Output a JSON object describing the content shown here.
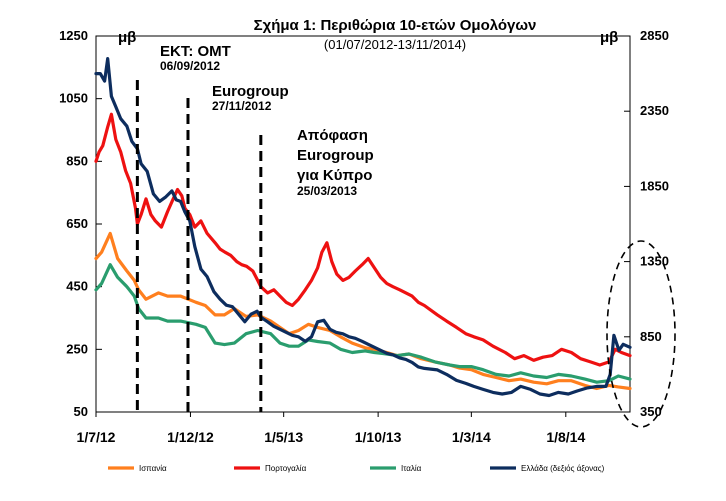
{
  "chart_data": {
    "type": "line",
    "title": "Σχήμα 1: Περιθώρια 10-ετών Ομολόγων",
    "subtitle": "(01/07/2012-13/11/2014)",
    "ylabel_left": "μβ",
    "ylabel_right": "μβ",
    "x_ticks": [
      "1/7/12",
      "1/12/12",
      "1/5/13",
      "1/10/13",
      "1/3/14",
      "1/8/14"
    ],
    "x_tick_dates": [
      "2012-07-01",
      "2012-12-01",
      "2013-05-01",
      "2013-10-01",
      "2014-03-01",
      "2014-08-01"
    ],
    "x_range": [
      "2012-07-01",
      "2014-11-13"
    ],
    "ylim_left": [
      50,
      1250
    ],
    "ylim_right": [
      350,
      2850
    ],
    "y_ticks_left": [
      50,
      250,
      450,
      650,
      850,
      1050,
      1250
    ],
    "y_ticks_right": [
      350,
      850,
      1350,
      1850,
      2350,
      2850
    ],
    "grid": false,
    "legend_position": "bottom",
    "annotations": [
      {
        "id": "omt",
        "date": "2012-09-06",
        "label": "ΕΚΤ: ΟΜΤ",
        "sublabel": "06/09/2012"
      },
      {
        "id": "eurogroup",
        "date": "2012-11-27",
        "label": "Eurogroup",
        "sublabel": "27/11/2012"
      },
      {
        "id": "cyprus",
        "date": "2013-03-25",
        "label_lines": [
          "Απόφαση",
          "Eurogroup",
          "για Κύπρο"
        ],
        "sublabel": "25/03/2013"
      }
    ],
    "series": [
      {
        "name": "Ισπανία",
        "axis": "left",
        "color": "#ff7f1e",
        "points": [
          [
            "2012-07-01",
            540
          ],
          [
            "2012-07-10",
            560
          ],
          [
            "2012-07-24",
            620
          ],
          [
            "2012-08-05",
            540
          ],
          [
            "2012-08-20",
            500
          ],
          [
            "2012-09-01",
            470
          ],
          [
            "2012-09-08",
            440
          ],
          [
            "2012-09-20",
            410
          ],
          [
            "2012-10-10",
            430
          ],
          [
            "2012-10-25",
            420
          ],
          [
            "2012-11-15",
            420
          ],
          [
            "2012-12-10",
            400
          ],
          [
            "2012-12-25",
            390
          ],
          [
            "2013-01-10",
            360
          ],
          [
            "2013-01-25",
            360
          ],
          [
            "2013-02-10",
            380
          ],
          [
            "2013-03-01",
            355
          ],
          [
            "2013-03-20",
            360
          ],
          [
            "2013-04-10",
            340
          ],
          [
            "2013-04-25",
            320
          ],
          [
            "2013-05-10",
            300
          ],
          [
            "2013-05-25",
            310
          ],
          [
            "2013-06-10",
            330
          ],
          [
            "2013-06-25",
            320
          ],
          [
            "2013-07-15",
            310
          ],
          [
            "2013-08-01",
            290
          ],
          [
            "2013-08-20",
            270
          ],
          [
            "2013-09-10",
            255
          ],
          [
            "2013-09-25",
            250
          ],
          [
            "2013-10-15",
            240
          ],
          [
            "2013-11-01",
            230
          ],
          [
            "2013-11-20",
            235
          ],
          [
            "2013-12-10",
            220
          ],
          [
            "2014-01-01",
            210
          ],
          [
            "2014-01-25",
            200
          ],
          [
            "2014-02-10",
            190
          ],
          [
            "2014-03-01",
            185
          ],
          [
            "2014-03-20",
            170
          ],
          [
            "2014-04-10",
            160
          ],
          [
            "2014-05-01",
            150
          ],
          [
            "2014-05-20",
            155
          ],
          [
            "2014-06-10",
            145
          ],
          [
            "2014-07-01",
            140
          ],
          [
            "2014-07-20",
            150
          ],
          [
            "2014-08-10",
            150
          ],
          [
            "2014-09-01",
            135
          ],
          [
            "2014-09-20",
            125
          ],
          [
            "2014-10-10",
            135
          ],
          [
            "2014-10-25",
            130
          ],
          [
            "2014-11-13",
            125
          ]
        ]
      },
      {
        "name": "Πορτογαλία",
        "axis": "left",
        "color": "#ee1111",
        "points": [
          [
            "2012-07-01",
            850
          ],
          [
            "2012-07-06",
            880
          ],
          [
            "2012-07-12",
            900
          ],
          [
            "2012-07-20",
            960
          ],
          [
            "2012-07-26",
            1000
          ],
          [
            "2012-08-02",
            920
          ],
          [
            "2012-08-10",
            880
          ],
          [
            "2012-08-18",
            820
          ],
          [
            "2012-08-26",
            780
          ],
          [
            "2012-09-03",
            700
          ],
          [
            "2012-09-06",
            650
          ],
          [
            "2012-09-12",
            680
          ],
          [
            "2012-09-20",
            730
          ],
          [
            "2012-09-28",
            680
          ],
          [
            "2012-10-05",
            660
          ],
          [
            "2012-10-15",
            640
          ],
          [
            "2012-10-25",
            690
          ],
          [
            "2012-11-03",
            730
          ],
          [
            "2012-11-10",
            760
          ],
          [
            "2012-11-17",
            740
          ],
          [
            "2012-11-22",
            700
          ],
          [
            "2012-11-30",
            680
          ],
          [
            "2012-12-08",
            640
          ],
          [
            "2012-12-18",
            660
          ],
          [
            "2012-12-28",
            620
          ],
          [
            "2013-01-10",
            590
          ],
          [
            "2013-01-18",
            570
          ],
          [
            "2013-01-26",
            560
          ],
          [
            "2013-02-04",
            550
          ],
          [
            "2013-02-14",
            530
          ],
          [
            "2013-02-22",
            520
          ],
          [
            "2013-03-02",
            515
          ],
          [
            "2013-03-12",
            500
          ],
          [
            "2013-03-20",
            470
          ],
          [
            "2013-03-25",
            450
          ],
          [
            "2013-04-05",
            430
          ],
          [
            "2013-04-15",
            440
          ],
          [
            "2013-04-25",
            420
          ],
          [
            "2013-05-05",
            400
          ],
          [
            "2013-05-15",
            390
          ],
          [
            "2013-05-25",
            410
          ],
          [
            "2013-06-05",
            440
          ],
          [
            "2013-06-15",
            470
          ],
          [
            "2013-06-25",
            510
          ],
          [
            "2013-07-02",
            560
          ],
          [
            "2013-07-10",
            590
          ],
          [
            "2013-07-18",
            530
          ],
          [
            "2013-07-26",
            490
          ],
          [
            "2013-08-05",
            470
          ],
          [
            "2013-08-15",
            480
          ],
          [
            "2013-08-25",
            500
          ],
          [
            "2013-09-05",
            520
          ],
          [
            "2013-09-15",
            540
          ],
          [
            "2013-09-25",
            510
          ],
          [
            "2013-10-05",
            480
          ],
          [
            "2013-10-15",
            460
          ],
          [
            "2013-10-25",
            450
          ],
          [
            "2013-11-05",
            440
          ],
          [
            "2013-11-15",
            430
          ],
          [
            "2013-11-25",
            420
          ],
          [
            "2013-12-05",
            400
          ],
          [
            "2013-12-15",
            390
          ],
          [
            "2014-01-05",
            360
          ],
          [
            "2014-01-20",
            340
          ],
          [
            "2014-02-05",
            320
          ],
          [
            "2014-02-20",
            300
          ],
          [
            "2014-03-05",
            290
          ],
          [
            "2014-03-20",
            280
          ],
          [
            "2014-04-05",
            260
          ],
          [
            "2014-04-25",
            240
          ],
          [
            "2014-05-10",
            220
          ],
          [
            "2014-05-25",
            230
          ],
          [
            "2014-06-10",
            215
          ],
          [
            "2014-06-25",
            225
          ],
          [
            "2014-07-10",
            230
          ],
          [
            "2014-07-25",
            250
          ],
          [
            "2014-08-10",
            240
          ],
          [
            "2014-08-25",
            220
          ],
          [
            "2014-09-10",
            210
          ],
          [
            "2014-09-25",
            200
          ],
          [
            "2014-10-10",
            210
          ],
          [
            "2014-10-20",
            250
          ],
          [
            "2014-10-30",
            240
          ],
          [
            "2014-11-13",
            230
          ]
        ]
      },
      {
        "name": "Ιταλία",
        "axis": "left",
        "color": "#2a9d6e",
        "points": [
          [
            "2012-07-01",
            440
          ],
          [
            "2012-07-10",
            460
          ],
          [
            "2012-07-24",
            520
          ],
          [
            "2012-08-05",
            480
          ],
          [
            "2012-08-20",
            450
          ],
          [
            "2012-09-01",
            420
          ],
          [
            "2012-09-08",
            380
          ],
          [
            "2012-09-20",
            350
          ],
          [
            "2012-10-10",
            350
          ],
          [
            "2012-10-25",
            340
          ],
          [
            "2012-11-15",
            340
          ],
          [
            "2012-12-10",
            330
          ],
          [
            "2012-12-25",
            320
          ],
          [
            "2013-01-10",
            270
          ],
          [
            "2013-01-25",
            265
          ],
          [
            "2013-02-10",
            270
          ],
          [
            "2013-03-01",
            300
          ],
          [
            "2013-03-20",
            310
          ],
          [
            "2013-04-10",
            300
          ],
          [
            "2013-04-25",
            270
          ],
          [
            "2013-05-10",
            260
          ],
          [
            "2013-05-25",
            260
          ],
          [
            "2013-06-10",
            280
          ],
          [
            "2013-06-25",
            275
          ],
          [
            "2013-07-15",
            270
          ],
          [
            "2013-08-01",
            250
          ],
          [
            "2013-08-20",
            240
          ],
          [
            "2013-09-10",
            245
          ],
          [
            "2013-09-25",
            240
          ],
          [
            "2013-10-15",
            235
          ],
          [
            "2013-11-01",
            230
          ],
          [
            "2013-11-20",
            235
          ],
          [
            "2013-12-10",
            225
          ],
          [
            "2014-01-01",
            210
          ],
          [
            "2014-01-25",
            200
          ],
          [
            "2014-02-10",
            195
          ],
          [
            "2014-03-01",
            195
          ],
          [
            "2014-03-20",
            185
          ],
          [
            "2014-04-10",
            170
          ],
          [
            "2014-05-01",
            165
          ],
          [
            "2014-05-20",
            175
          ],
          [
            "2014-06-10",
            165
          ],
          [
            "2014-07-01",
            160
          ],
          [
            "2014-07-20",
            170
          ],
          [
            "2014-08-10",
            165
          ],
          [
            "2014-09-01",
            155
          ],
          [
            "2014-09-20",
            145
          ],
          [
            "2014-10-10",
            150
          ],
          [
            "2014-10-25",
            165
          ],
          [
            "2014-11-13",
            155
          ]
        ]
      },
      {
        "name": "Ελλάδα (δεξιός άξονας)",
        "axis": "right",
        "color": "#0d2d5e",
        "points": [
          [
            "2012-07-01",
            2600
          ],
          [
            "2012-07-08",
            2600
          ],
          [
            "2012-07-15",
            2550
          ],
          [
            "2012-07-20",
            2700
          ],
          [
            "2012-07-26",
            2450
          ],
          [
            "2012-08-02",
            2380
          ],
          [
            "2012-08-10",
            2300
          ],
          [
            "2012-08-20",
            2250
          ],
          [
            "2012-08-28",
            2150
          ],
          [
            "2012-09-06",
            2100
          ],
          [
            "2012-09-12",
            2000
          ],
          [
            "2012-09-22",
            1950
          ],
          [
            "2012-10-02",
            1800
          ],
          [
            "2012-10-12",
            1750
          ],
          [
            "2012-10-22",
            1780
          ],
          [
            "2012-11-01",
            1820
          ],
          [
            "2012-11-08",
            1760
          ],
          [
            "2012-11-15",
            1750
          ],
          [
            "2012-11-22",
            1680
          ],
          [
            "2012-11-30",
            1620
          ],
          [
            "2012-12-08",
            1450
          ],
          [
            "2012-12-18",
            1300
          ],
          [
            "2012-12-28",
            1250
          ],
          [
            "2013-01-08",
            1150
          ],
          [
            "2013-01-18",
            1100
          ],
          [
            "2013-01-28",
            1060
          ],
          [
            "2013-02-07",
            1050
          ],
          [
            "2013-02-17",
            1000
          ],
          [
            "2013-02-27",
            950
          ],
          [
            "2013-03-09",
            1000
          ],
          [
            "2013-03-19",
            1020
          ],
          [
            "2013-03-25",
            980
          ],
          [
            "2013-04-05",
            950
          ],
          [
            "2013-04-15",
            920
          ],
          [
            "2013-04-25",
            900
          ],
          [
            "2013-05-05",
            880
          ],
          [
            "2013-05-15",
            860
          ],
          [
            "2013-05-25",
            850
          ],
          [
            "2013-06-05",
            820
          ],
          [
            "2013-06-15",
            850
          ],
          [
            "2013-06-25",
            950
          ],
          [
            "2013-07-05",
            960
          ],
          [
            "2013-07-15",
            900
          ],
          [
            "2013-07-25",
            880
          ],
          [
            "2013-08-05",
            870
          ],
          [
            "2013-08-15",
            850
          ],
          [
            "2013-08-25",
            840
          ],
          [
            "2013-09-05",
            820
          ],
          [
            "2013-09-15",
            800
          ],
          [
            "2013-09-25",
            780
          ],
          [
            "2013-10-05",
            760
          ],
          [
            "2013-10-15",
            740
          ],
          [
            "2013-10-25",
            730
          ],
          [
            "2013-11-05",
            710
          ],
          [
            "2013-11-15",
            700
          ],
          [
            "2013-11-25",
            680
          ],
          [
            "2013-12-05",
            650
          ],
          [
            "2013-12-15",
            640
          ],
          [
            "2014-01-05",
            630
          ],
          [
            "2014-01-20",
            600
          ],
          [
            "2014-02-05",
            560
          ],
          [
            "2014-02-20",
            540
          ],
          [
            "2014-03-05",
            520
          ],
          [
            "2014-03-20",
            500
          ],
          [
            "2014-04-05",
            480
          ],
          [
            "2014-04-20",
            470
          ],
          [
            "2014-05-05",
            480
          ],
          [
            "2014-05-20",
            520
          ],
          [
            "2014-06-05",
            500
          ],
          [
            "2014-06-20",
            470
          ],
          [
            "2014-07-05",
            460
          ],
          [
            "2014-07-20",
            480
          ],
          [
            "2014-08-05",
            470
          ],
          [
            "2014-08-20",
            490
          ],
          [
            "2014-09-05",
            510
          ],
          [
            "2014-09-20",
            520
          ],
          [
            "2014-10-05",
            520
          ],
          [
            "2014-10-12",
            600
          ],
          [
            "2014-10-18",
            860
          ],
          [
            "2014-10-26",
            760
          ],
          [
            "2014-11-02",
            800
          ],
          [
            "2014-11-13",
            780
          ]
        ]
      }
    ]
  }
}
